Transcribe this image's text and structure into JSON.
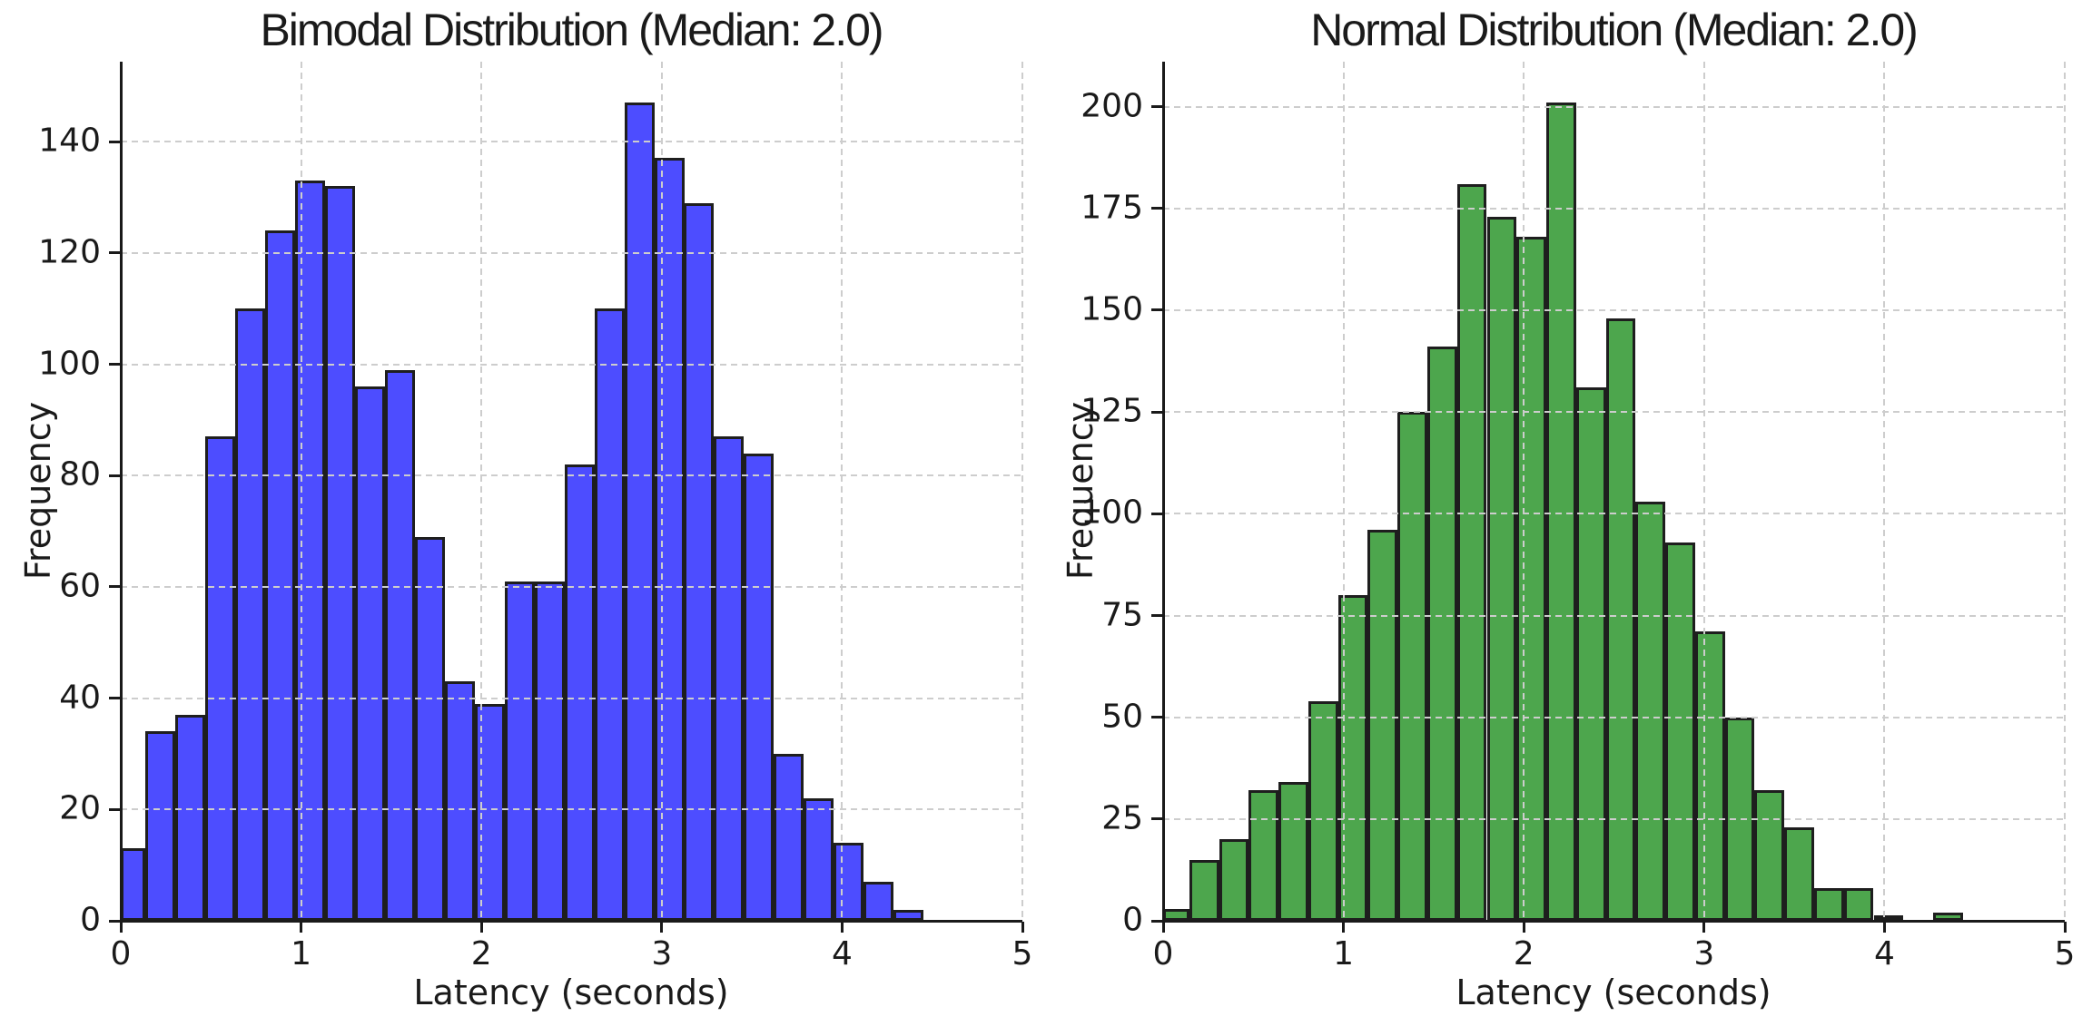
{
  "figure": {
    "background": "#ffffff",
    "text_color": "#1a1a1a",
    "grid_color": "#cdcdcd",
    "grid_style": "dashed"
  },
  "chart_data": [
    {
      "type": "bar",
      "histogram": true,
      "title": "Bimodal Distribution (Median: 2.0)",
      "xlabel": "Latency (seconds)",
      "ylabel": "Frequency",
      "bar_color": "#4d4dff",
      "bar_edge_color": "#1e1e1e",
      "xlim": [
        0,
        5
      ],
      "ylim": [
        0,
        154.35
      ],
      "xticks": [
        0,
        1,
        2,
        3,
        4,
        5
      ],
      "yticks": [
        0,
        20,
        40,
        60,
        80,
        100,
        120,
        140
      ],
      "bin_start": -0.03,
      "bin_width": 0.166,
      "frequencies": [
        13,
        34,
        37,
        87,
        110,
        124,
        133,
        132,
        96,
        99,
        69,
        43,
        39,
        61,
        61,
        82,
        110,
        147,
        137,
        129,
        87,
        84,
        30,
        22,
        14,
        7,
        2
      ],
      "grid": true,
      "legend": "none"
    },
    {
      "type": "bar",
      "histogram": true,
      "title": "Normal Distribution (Median: 2.0)",
      "xlabel": "Latency (seconds)",
      "ylabel": "Frequency",
      "bar_color": "#4da64d",
      "bar_edge_color": "#1e1e1e",
      "xlim": [
        0,
        5
      ],
      "ylim": [
        0,
        211.05
      ],
      "xticks": [
        0,
        1,
        2,
        3,
        4,
        5
      ],
      "yticks": [
        0,
        25,
        50,
        75,
        100,
        125,
        150,
        175,
        200
      ],
      "bin_start": -0.02,
      "bin_width": 0.165,
      "frequencies": [
        3,
        15,
        20,
        32,
        34,
        54,
        80,
        96,
        125,
        141,
        181,
        173,
        168,
        201,
        131,
        148,
        103,
        93,
        71,
        50,
        32,
        23,
        8,
        8,
        1,
        0,
        2
      ],
      "grid": true,
      "legend": "none"
    }
  ]
}
